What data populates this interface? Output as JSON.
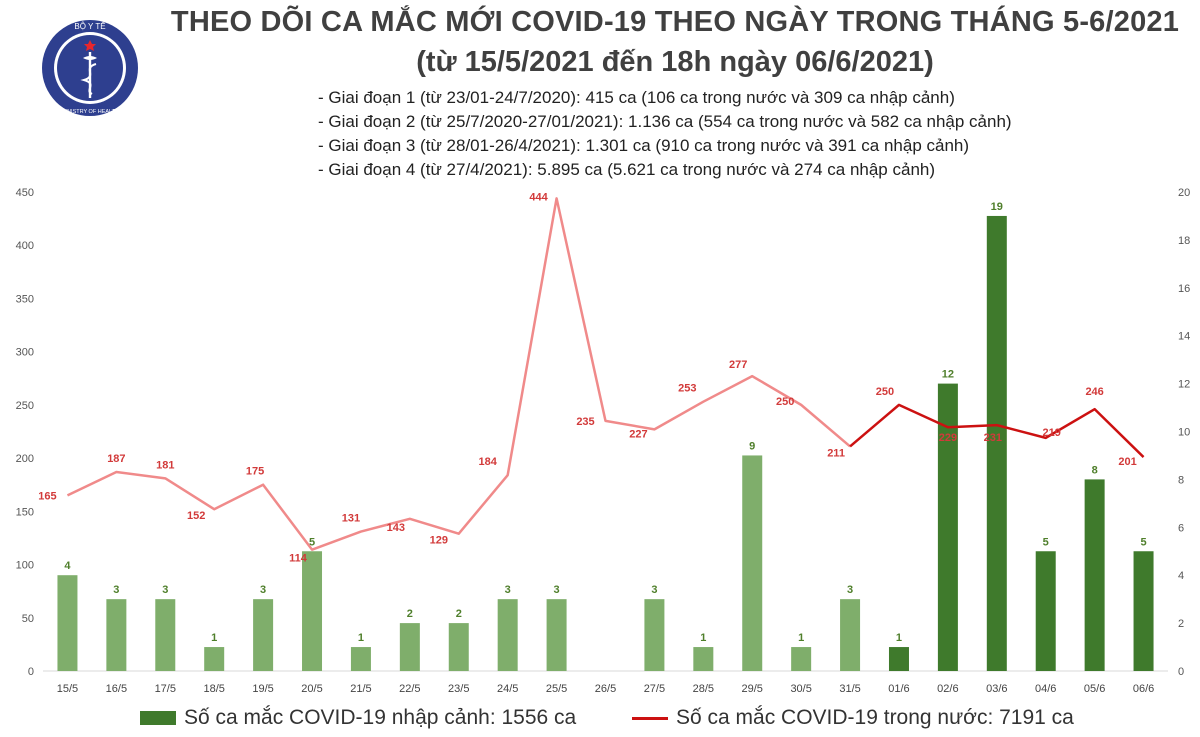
{
  "header": {
    "title": "THEO DÕI CA MẮC MỚI COVID-19 THEO NGÀY TRONG THÁNG 5-6/2021",
    "subtitle": "(từ 15/5/2021 đến 18h ngày 06/6/2021)",
    "notes": [
      "- Giai đoạn 1 (từ 23/01-24/7/2020): 415 ca (106 ca trong nước và 309 ca nhập cảnh)",
      "- Giai đoạn 2 (từ 25/7/2020-27/01/2021): 1.136 ca (554 ca trong nước và 582 ca nhập cảnh)",
      "- Giai đoạn 3 (từ 28/01-26/4/2021): 1.301 ca (910 ca trong nước và 391 ca nhập cảnh)",
      "- Giai đoạn 4 (từ 27/4/2021): 5.895 ca (5.621 ca trong nước và 274 ca nhập cảnh)"
    ]
  },
  "logo": {
    "top_text": "BỘ Y TẾ",
    "bottom_text": "MINISTRY OF HEALTH",
    "icon": "caduceus-icon",
    "color": "#2e3f8f"
  },
  "chart_data": {
    "type": "bar",
    "categories": [
      "15/5",
      "16/5",
      "17/5",
      "18/5",
      "19/5",
      "20/5",
      "21/5",
      "22/5",
      "23/5",
      "24/5",
      "25/5",
      "26/5",
      "27/5",
      "28/5",
      "29/5",
      "30/5",
      "31/5",
      "01/6",
      "02/6",
      "03/6",
      "04/6",
      "05/6",
      "06/6"
    ],
    "series": [
      {
        "name": "Số ca mắc COVID-19 nhập cảnh: 1556 ca",
        "type": "bar",
        "axis": "right",
        "values": [
          4,
          3,
          3,
          1,
          3,
          5,
          1,
          2,
          2,
          3,
          3,
          null,
          3,
          1,
          9,
          1,
          3,
          1,
          12,
          19,
          5,
          8,
          5
        ],
        "color_light": "#7fae6b",
        "color_dark": "#3f7a2c",
        "dark_from_index": 17
      },
      {
        "name": "Số ca mắc COVID-19 trong nước: 7191 ca",
        "type": "line",
        "axis": "left",
        "values": [
          165,
          187,
          181,
          152,
          175,
          114,
          131,
          143,
          129,
          184,
          444,
          235,
          227,
          253,
          277,
          250,
          211,
          250,
          229,
          231,
          219,
          246,
          201
        ],
        "color_light": "#f08a8a",
        "color_dark": "#cc1111",
        "dark_from_index": 16
      }
    ],
    "yleft": {
      "min": 0,
      "max": 450,
      "step": 50
    },
    "yright": {
      "min": 0,
      "max": 20,
      "step": 2
    },
    "grid": false,
    "legend": "bottom"
  },
  "legend": {
    "bar_label": "Số ca mắc COVID-19 nhập cảnh: 1556 ca",
    "line_label": "Số ca mắc COVID-19 trong nước: 7191 ca"
  }
}
